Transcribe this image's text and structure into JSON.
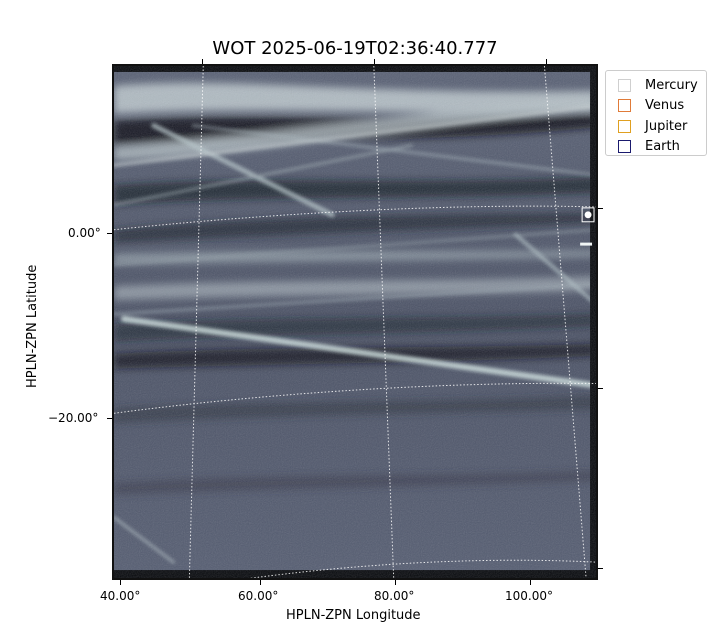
{
  "figure": {
    "title": "WOT 2025-06-19T02:36:40.777"
  },
  "axes": {
    "xlabel": "HPLN-ZPN Longitude",
    "ylabel": "HPLN-ZPN Latitude",
    "x_ticks": [
      "40.00°",
      "60.00°",
      "80.00°",
      "100.00°"
    ],
    "y_ticks": [
      "0.00°",
      "−20.00°"
    ]
  },
  "legend": {
    "items": [
      {
        "label": "Mercury",
        "color": "#cfcfcf"
      },
      {
        "label": "Venus",
        "color": "#e07b39"
      },
      {
        "label": "Jupiter",
        "color": "#e0a020"
      },
      {
        "label": "Earth",
        "color": "#1a1a6e"
      }
    ]
  },
  "image": {
    "colormap": [
      "#0a0d14",
      "#3e4658",
      "#6e7890",
      "#a9b6c0",
      "#e6efee"
    ]
  }
}
